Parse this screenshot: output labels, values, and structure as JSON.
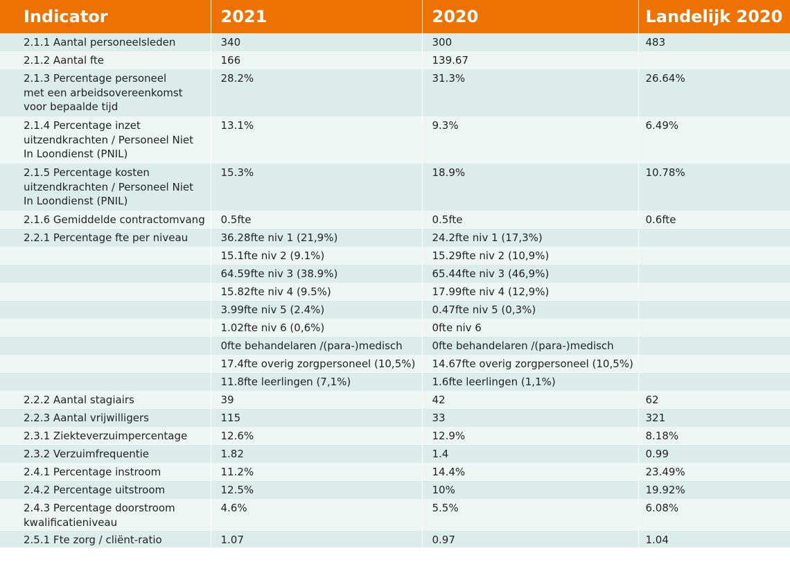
{
  "colors": {
    "header_bg": "#ee7203",
    "header_text": "#ffffff",
    "row_a": "#dcede9",
    "row_b": "#eef6f4",
    "text": "#222222"
  },
  "headers": [
    "Indicator",
    "2021",
    "2020",
    "Landelijk 2020"
  ],
  "rows": [
    {
      "lines": [
        "2.1.1 Aantal personeelsleden"
      ],
      "y2021": "340",
      "y2020": "300",
      "national": "483"
    },
    {
      "lines": [
        "2.1.2 Aantal fte"
      ],
      "y2021": "166",
      "y2020": "139.67",
      "national": ""
    },
    {
      "lines": [
        "2.1.3 Percentage personeel",
        "met een arbeidsovereenkomst",
        "voor bepaalde tijd"
      ],
      "y2021": "28.2%",
      "y2020": "31.3%",
      "national": "26.64%"
    },
    {
      "lines": [
        "2.1.4 Percentage inzet",
        "uitzendkrachten / Personeel Niet",
        "In Loondienst (PNIL)"
      ],
      "y2021": "13.1%",
      "y2020": "9.3%",
      "national": "6.49%"
    },
    {
      "lines": [
        "2.1.5 Percentage kosten",
        "uitzendkrachten / Personeel Niet",
        "In Loondienst (PNIL)"
      ],
      "y2021": "15.3%",
      "y2020": "18.9%",
      "national": "10.78%"
    },
    {
      "lines": [
        "2.1.6 Gemiddelde contractomvang"
      ],
      "y2021": "0.5fte",
      "y2020": "0.5fte",
      "national": "0.6fte"
    },
    {
      "lines": [
        "2.2.1 Percentage fte per niveau"
      ],
      "y2021": "36.28fte niv 1 (21,9%)",
      "y2020": "24.2fte niv 1 (17,3%)",
      "national": ""
    },
    {
      "lines": [
        ""
      ],
      "y2021": "15.1fte niv 2 (9.1%)",
      "y2020": "15.29fte niv 2 (10,9%)",
      "national": ""
    },
    {
      "lines": [
        ""
      ],
      "y2021": "64.59fte niv 3 (38.9%)",
      "y2020": "65.44fte niv 3 (46,9%)",
      "national": ""
    },
    {
      "lines": [
        ""
      ],
      "y2021": "15.82fte niv 4 (9.5%)",
      "y2020": "17.99fte niv 4 (12,9%)",
      "national": ""
    },
    {
      "lines": [
        ""
      ],
      "y2021": "3.99fte niv 5 (2.4%)",
      "y2020": "0.47fte niv 5 (0,3%)",
      "national": ""
    },
    {
      "lines": [
        ""
      ],
      "y2021": "1.02fte niv 6 (0,6%)",
      "y2020": "0fte niv 6",
      "national": ""
    },
    {
      "lines": [
        ""
      ],
      "y2021": "0fte behandelaren /(para-)medisch",
      "y2020": "0fte behandelaren /(para-)medisch",
      "national": ""
    },
    {
      "lines": [
        ""
      ],
      "y2021": "17.4fte overig zorgpersoneel (10,5%)",
      "y2020": "14.67fte overig zorgpersoneel (10,5%)",
      "national": ""
    },
    {
      "lines": [
        ""
      ],
      "y2021": "11.8fte leerlingen (7,1%)",
      "y2020": "1.6fte leerlingen (1,1%)",
      "national": ""
    },
    {
      "lines": [
        "2.2.2 Aantal stagiairs"
      ],
      "y2021": "39",
      "y2020": "42",
      "national": "62"
    },
    {
      "lines": [
        "2.2.3 Aantal vrijwilligers"
      ],
      "y2021": "115",
      "y2020": "33",
      "national": "321"
    },
    {
      "lines": [
        "2.3.1 Ziekteverzuimpercentage"
      ],
      "y2021": "12.6%",
      "y2020": "12.9%",
      "national": "8.18%"
    },
    {
      "lines": [
        "2.3.2 Verzuimfrequentie"
      ],
      "y2021": "1.82",
      "y2020": "1.4",
      "national": "0.99"
    },
    {
      "lines": [
        "2.4.1 Percentage instroom"
      ],
      "y2021": "11.2%",
      "y2020": "14.4%",
      "national": "23.49%"
    },
    {
      "lines": [
        "2.4.2 Percentage uitstroom"
      ],
      "y2021": "12.5%",
      "y2020": "10%",
      "national": "19.92%"
    },
    {
      "lines": [
        "2.4.3 Percentage doorstroom",
        "kwalificatieniveau"
      ],
      "y2021": "4.6%",
      "y2020": "5.5%",
      "national": "6.08%"
    },
    {
      "lines": [
        "2.5.1 Fte zorg / cliënt-ratio"
      ],
      "y2021": "1.07",
      "y2020": "0.97",
      "national": "1.04"
    }
  ]
}
